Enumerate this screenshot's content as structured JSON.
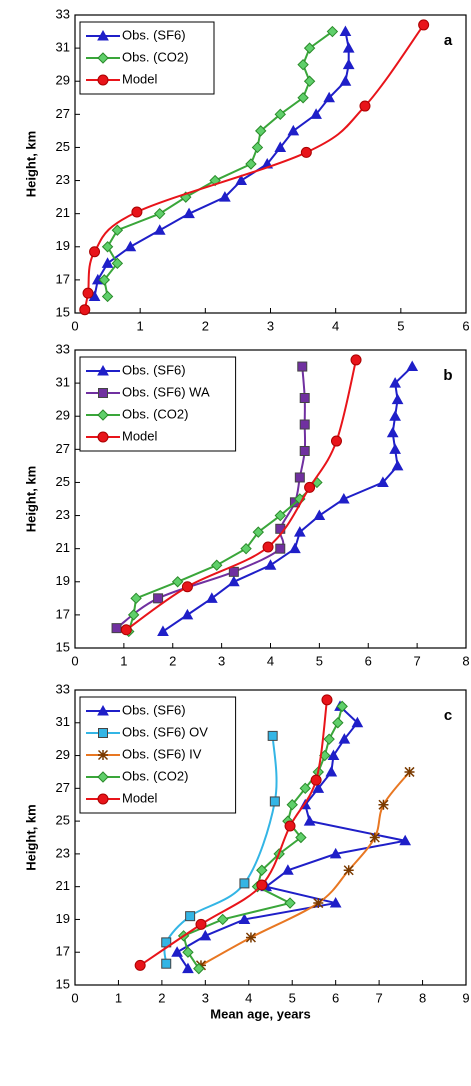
{
  "chart_data": [
    {
      "type": "line",
      "label": "a",
      "ylabel": "Height, km",
      "xlim": [
        0,
        6
      ],
      "xticks": [
        0,
        1,
        2,
        3,
        4,
        5,
        6
      ],
      "ylim": [
        15,
        33
      ],
      "yticks": [
        15,
        17,
        19,
        21,
        23,
        25,
        27,
        29,
        31,
        33
      ],
      "grid": false,
      "legend": "top-left",
      "series": [
        {
          "name": "Obs. (SF6)",
          "color": "#1f1fc8",
          "marker": "triangle",
          "smooth": false,
          "x": [
            0.3,
            0.35,
            0.5,
            0.85,
            1.3,
            1.75,
            2.3,
            2.55,
            2.95,
            3.15,
            3.35,
            3.7,
            3.9,
            4.15,
            4.2,
            4.2,
            4.15
          ],
          "values": [
            16,
            17,
            18,
            19,
            20,
            21,
            22,
            23,
            24,
            25,
            26,
            27,
            28,
            29,
            30,
            31,
            32
          ]
        },
        {
          "name": "Obs. (CO2)",
          "color": "#3aa63a",
          "marker": "diamond",
          "smooth": false,
          "x": [
            0.5,
            0.45,
            0.65,
            0.5,
            0.65,
            1.3,
            1.7,
            2.15,
            2.7,
            2.8,
            2.85,
            3.15,
            3.5,
            3.6,
            3.5,
            3.6,
            3.95
          ],
          "values": [
            16,
            17,
            18,
            19,
            20,
            21,
            22,
            23,
            24,
            25,
            26,
            27,
            28,
            29,
            30,
            31,
            32
          ]
        },
        {
          "name": "Model",
          "color": "#e8141a",
          "marker": "circle",
          "smooth": true,
          "x": [
            0.15,
            0.2,
            0.3,
            0.95,
            3.55,
            4.45,
            5.35
          ],
          "values": [
            15.2,
            16.2,
            18.7,
            21.1,
            24.7,
            27.5,
            32.4
          ]
        }
      ]
    },
    {
      "type": "line",
      "label": "b",
      "ylabel": "Height, km",
      "xlim": [
        0,
        8
      ],
      "xticks": [
        0,
        1,
        2,
        3,
        4,
        5,
        6,
        7,
        8
      ],
      "ylim": [
        15,
        33
      ],
      "yticks": [
        15,
        17,
        19,
        21,
        23,
        25,
        27,
        29,
        31,
        33
      ],
      "grid": false,
      "legend": "top-left",
      "series": [
        {
          "name": "Obs. (SF6)",
          "color": "#1f1fc8",
          "marker": "triangle",
          "smooth": false,
          "x": [
            1.8,
            2.3,
            2.8,
            3.25,
            4.0,
            4.5,
            4.6,
            5.0,
            5.5,
            6.3,
            6.6,
            6.55,
            6.5,
            6.55,
            6.6,
            6.55,
            6.9
          ],
          "values": [
            16,
            17,
            18,
            19,
            20,
            21,
            22,
            23,
            24,
            25,
            26,
            27,
            28,
            29,
            30,
            31,
            32
          ]
        },
        {
          "name": "Obs. (SF6) WA",
          "color": "#7030a0",
          "marker": "square",
          "smooth": true,
          "x": [
            0.85,
            1.7,
            3.25,
            4.2,
            4.2,
            4.5,
            4.6,
            4.7,
            4.7,
            4.7,
            4.65
          ],
          "values": [
            16.2,
            18,
            19.6,
            21,
            22.2,
            23.8,
            25.3,
            26.9,
            28.5,
            30.1,
            32
          ]
        },
        {
          "name": "Obs. (CO2)",
          "color": "#3aa63a",
          "marker": "diamond",
          "smooth": false,
          "x": [
            1.1,
            1.2,
            1.25,
            2.1,
            2.9,
            3.5,
            3.75,
            4.2,
            4.6,
            4.95
          ],
          "values": [
            16,
            17,
            18,
            19,
            20,
            21,
            22,
            23,
            24,
            25
          ]
        },
        {
          "name": "Model",
          "color": "#e8141a",
          "marker": "circle",
          "smooth": true,
          "x": [
            1.05,
            2.3,
            3.95,
            4.8,
            5.35,
            5.75
          ],
          "values": [
            16.1,
            18.7,
            21.1,
            24.7,
            27.5,
            32.4
          ]
        }
      ]
    },
    {
      "type": "line",
      "label": "c",
      "ylabel": "Height, km",
      "xlabel": "Mean age, years",
      "xlim": [
        0,
        9
      ],
      "xticks": [
        0,
        1,
        2,
        3,
        4,
        5,
        6,
        7,
        8,
        9
      ],
      "ylim": [
        15,
        33
      ],
      "yticks": [
        15,
        17,
        19,
        21,
        23,
        25,
        27,
        29,
        31,
        33
      ],
      "grid": false,
      "legend": "top-left",
      "series": [
        {
          "name": "Obs. (SF6)",
          "color": "#1f1fc8",
          "marker": "triangle",
          "smooth": false,
          "x": [
            2.6,
            2.35,
            3.0,
            3.9,
            6.0,
            4.4,
            4.9,
            6.0,
            7.6,
            5.4,
            5.3,
            5.6,
            5.9,
            5.95,
            6.2,
            6.5,
            6.1
          ],
          "values": [
            16,
            17,
            18,
            19,
            20,
            21,
            22,
            23,
            23.8,
            25,
            26,
            27,
            28,
            29,
            30,
            31,
            32
          ]
        },
        {
          "name": "Obs. (SF6) OV",
          "color": "#33b5e5",
          "marker": "square",
          "smooth": true,
          "x": [
            2.1,
            2.1,
            2.65,
            3.9,
            4.6,
            4.55
          ],
          "values": [
            16.3,
            17.6,
            19.2,
            21.2,
            26.2,
            30.2
          ]
        },
        {
          "name": "Obs. (SF6) IV",
          "color": "#e87722",
          "marker": "star",
          "smooth": true,
          "x": [
            2.9,
            4.05,
            5.6,
            6.3,
            6.9,
            7.1,
            7.7
          ],
          "values": [
            16.2,
            17.9,
            20,
            22,
            24,
            26,
            28
          ]
        },
        {
          "name": "Obs. (CO2)",
          "color": "#3aa63a",
          "marker": "diamond",
          "smooth": false,
          "x": [
            2.85,
            2.6,
            2.5,
            3.4,
            4.95,
            4.2,
            4.3,
            4.7,
            5.2,
            4.9,
            5.0,
            5.3,
            5.6,
            5.75,
            5.85,
            6.05,
            6.15
          ],
          "values": [
            16,
            17,
            18,
            19,
            20,
            21,
            22,
            23,
            24,
            25,
            26,
            27,
            28,
            29,
            30,
            31,
            32
          ]
        },
        {
          "name": "Model",
          "color": "#e8141a",
          "marker": "circle",
          "smooth": true,
          "x": [
            1.5,
            2.9,
            4.3,
            4.95,
            5.55,
            5.8
          ],
          "values": [
            16.2,
            18.7,
            21.1,
            24.7,
            27.5,
            32.4
          ]
        }
      ]
    }
  ]
}
